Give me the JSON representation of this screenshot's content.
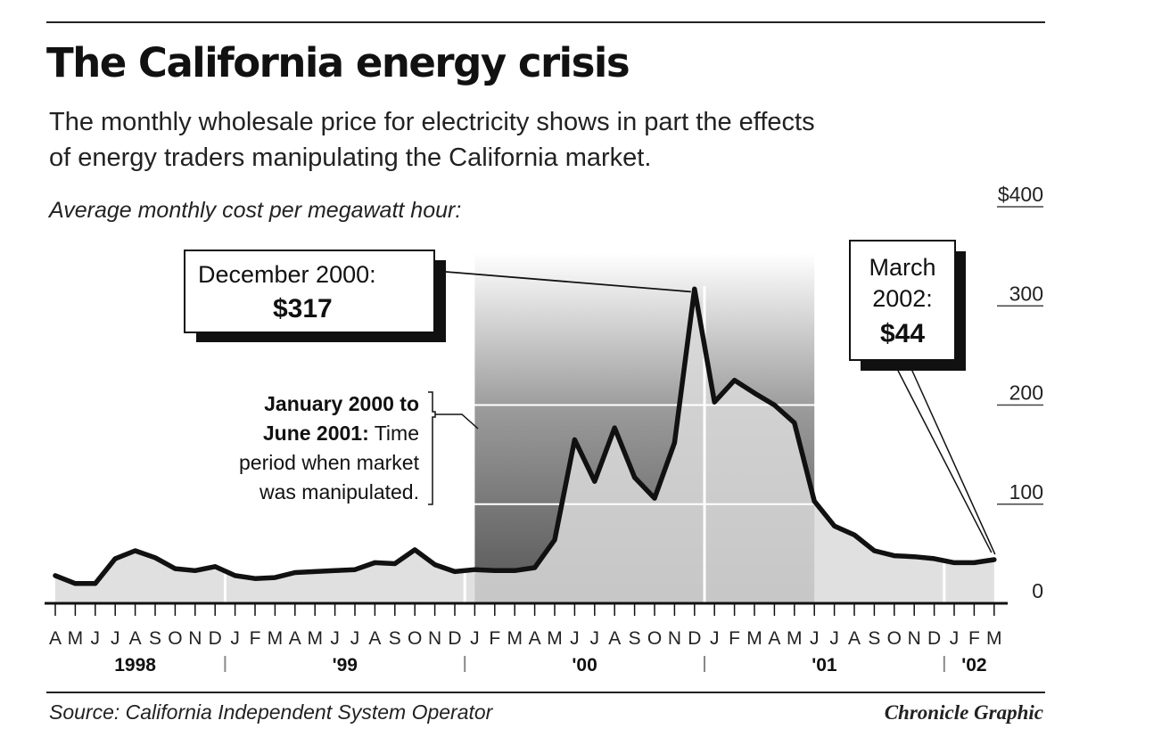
{
  "header": {
    "title": "The California energy crisis",
    "subtitle_line1": "The monthly wholesale price for electricity shows in part the effects",
    "subtitle_line2": "of energy traders manipulating the California market.",
    "unit_label": "Average monthly cost per megawatt hour:"
  },
  "footer": {
    "source": "Source: California Independent System Operator",
    "credit": "Chronicle Graphic"
  },
  "chart_data": {
    "type": "area",
    "ylim": [
      0,
      400
    ],
    "y_ticks": [
      {
        "value": 400,
        "label": "$400"
      },
      {
        "value": 300,
        "label": "300"
      },
      {
        "value": 200,
        "label": "200"
      },
      {
        "value": 100,
        "label": "100"
      },
      {
        "value": 0,
        "label": "0"
      }
    ],
    "month_letters": [
      "A",
      "M",
      "J",
      "J",
      "A",
      "S",
      "O",
      "N",
      "D",
      "J",
      "F",
      "M",
      "A",
      "M",
      "J",
      "J",
      "A",
      "S",
      "O",
      "N",
      "D",
      "J",
      "F",
      "M",
      "A",
      "M",
      "J",
      "J",
      "A",
      "S",
      "O",
      "N",
      "D",
      "J",
      "F",
      "M",
      "A",
      "M",
      "J",
      "J",
      "A",
      "S",
      "O",
      "N",
      "D",
      "J",
      "F",
      "M"
    ],
    "year_labels": [
      {
        "label": "1998",
        "start_index": 0
      },
      {
        "label": "'99",
        "start_index": 9
      },
      {
        "label": "'00",
        "start_index": 21
      },
      {
        "label": "'01",
        "start_index": 33
      },
      {
        "label": "'02",
        "start_index": 45
      }
    ],
    "x": [
      "1998-04",
      "1998-05",
      "1998-06",
      "1998-07",
      "1998-08",
      "1998-09",
      "1998-10",
      "1998-11",
      "1998-12",
      "1999-01",
      "1999-02",
      "1999-03",
      "1999-04",
      "1999-05",
      "1999-06",
      "1999-07",
      "1999-08",
      "1999-09",
      "1999-10",
      "1999-11",
      "1999-12",
      "2000-01",
      "2000-02",
      "2000-03",
      "2000-04",
      "2000-05",
      "2000-06",
      "2000-07",
      "2000-08",
      "2000-09",
      "2000-10",
      "2000-11",
      "2000-12",
      "2001-01",
      "2001-02",
      "2001-03",
      "2001-04",
      "2001-05",
      "2001-06",
      "2001-07",
      "2001-08",
      "2001-09",
      "2001-10",
      "2001-11",
      "2001-12",
      "2002-01",
      "2002-02",
      "2002-03"
    ],
    "series": [
      {
        "values": [
          28,
          20,
          20,
          45,
          53,
          46,
          35,
          33,
          37,
          28,
          25,
          26,
          31,
          32,
          33,
          34,
          41,
          40,
          54,
          39,
          32,
          34,
          33,
          33,
          36,
          64,
          165,
          123,
          177,
          127,
          106,
          162,
          317,
          203,
          225,
          212,
          200,
          182,
          103,
          78,
          69,
          53,
          48,
          47,
          45,
          41,
          41,
          44
        ]
      }
    ],
    "shaded_period": {
      "start": "2000-01",
      "end": "2001-06"
    },
    "annotations": {
      "peak": {
        "line1": "December 2000:",
        "line2": "$317",
        "x": "2000-12",
        "y": 317
      },
      "latest": {
        "line1": "March",
        "line2": "2002:",
        "line3": "$44",
        "x": "2002-03",
        "y": 44
      },
      "period": {
        "bold1": "January 2000 to",
        "bold2": "June 2001:",
        "rest2": " Time",
        "line3": "period when market",
        "line4": "was manipulated."
      }
    }
  }
}
